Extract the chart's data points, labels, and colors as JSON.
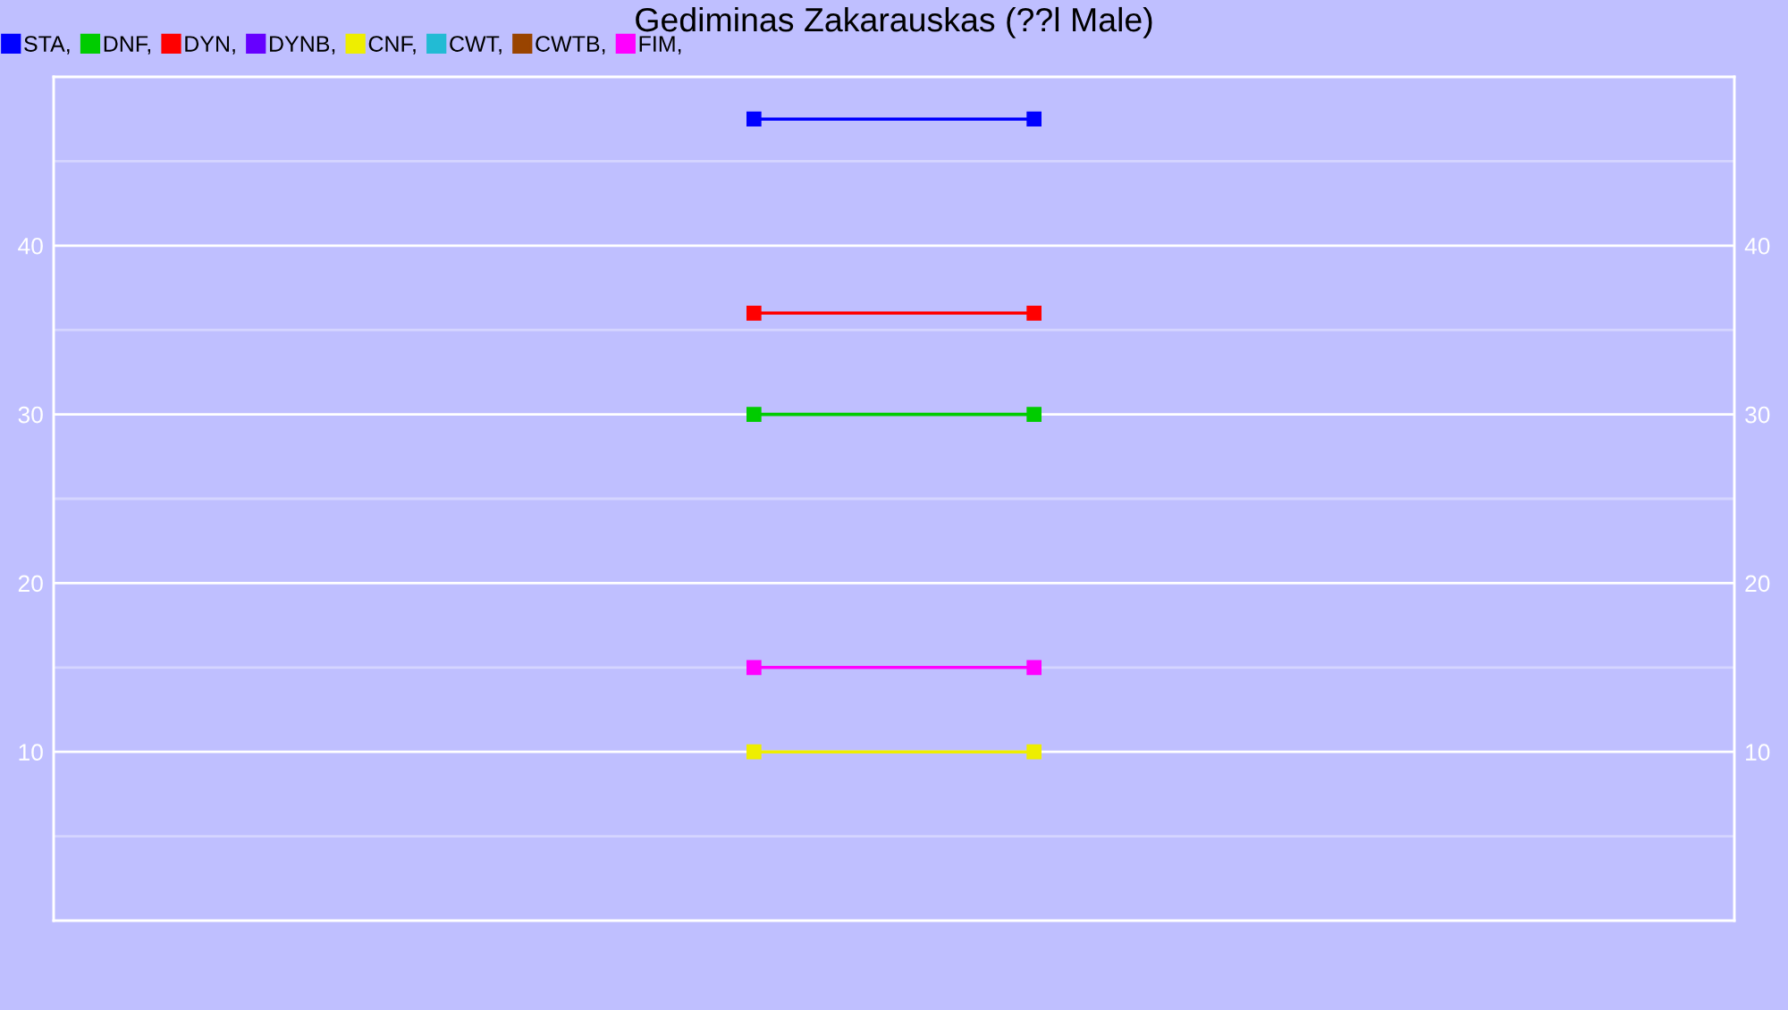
{
  "chart_data": {
    "type": "line",
    "title": "Gediminas Zakarauskas (??l Male)",
    "categories": [
      null,
      null,
      null,
      null,
      null,
      null
    ],
    "series": [
      {
        "name": "STA,",
        "color": "#0000ff",
        "values": [
          null,
          null,
          47.5,
          47.5,
          null,
          null
        ]
      },
      {
        "name": "DNF,",
        "color": "#00cc00",
        "values": [
          null,
          null,
          30,
          30,
          null,
          null
        ]
      },
      {
        "name": "DYN,",
        "color": "#ff0000",
        "values": [
          null,
          null,
          36,
          36,
          null,
          null
        ]
      },
      {
        "name": "DYNB,",
        "color": "#6600ff",
        "values": [
          null,
          null,
          null,
          null,
          null,
          null
        ]
      },
      {
        "name": "CNF,",
        "color": "#eeee00",
        "values": [
          null,
          null,
          10,
          10,
          null,
          null
        ]
      },
      {
        "name": "CWT,",
        "color": "#22bbd4",
        "values": [
          null,
          null,
          null,
          null,
          null,
          null
        ]
      },
      {
        "name": "CWTB,",
        "color": "#994400",
        "values": [
          null,
          null,
          null,
          null,
          null,
          null
        ]
      },
      {
        "name": "FIM,",
        "color": "#ff00ff",
        "values": [
          null,
          null,
          15,
          15,
          null,
          null
        ]
      }
    ],
    "ylim": [
      0,
      50
    ],
    "yticks": [
      {
        "value": 5,
        "label": null
      },
      10,
      {
        "value": 15,
        "label": null
      },
      20,
      {
        "value": 25,
        "label": null
      },
      30,
      {
        "value": 35,
        "label": null
      },
      40,
      {
        "value": 45,
        "label": null
      }
    ],
    "y2lim": [
      0,
      50
    ],
    "y2ticks": [
      10,
      20,
      30,
      40
    ],
    "tick_labels": "y",
    "grid": "y",
    "legend": "top left",
    "marker": "square",
    "line_style": "solid"
  }
}
